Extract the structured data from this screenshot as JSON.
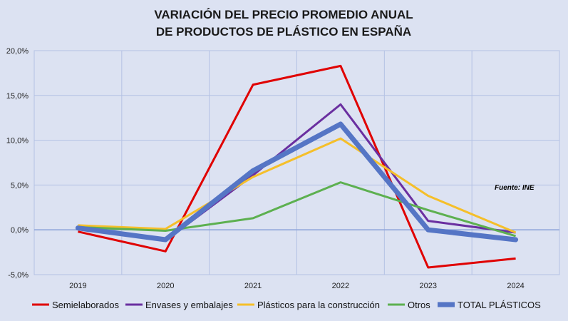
{
  "chart_data": {
    "type": "line",
    "title": [
      "VARIACIÓN DEL PRECIO PROMEDIO ANUAL",
      "DE PRODUCTOS DE PLÁSTICO EN ESPAÑA"
    ],
    "categories": [
      "2019",
      "2020",
      "2021",
      "2022",
      "2023",
      "2024"
    ],
    "ylim": [
      -5,
      20
    ],
    "yticks": [
      -5,
      0,
      5,
      10,
      15,
      20
    ],
    "ytick_labels": [
      "-5,0%",
      "0,0%",
      "5,0%",
      "10,0%",
      "15,0%",
      "20,0%"
    ],
    "grid": true,
    "legend_position": "bottom",
    "annotation": "Fuente: INE",
    "series": [
      {
        "name": "Semielaborados",
        "color": "#e00000",
        "values": [
          -0.2,
          -2.4,
          16.2,
          18.3,
          -4.2,
          -3.2
        ]
      },
      {
        "name": "Envases y embalajes",
        "color": "#6a2fa0",
        "values": [
          0.2,
          -1.2,
          6.1,
          14.0,
          1.0,
          -0.3
        ]
      },
      {
        "name": "Plásticos para la construcción",
        "color": "#f5bf2a",
        "values": [
          0.5,
          0.1,
          5.9,
          10.2,
          3.8,
          -0.3
        ]
      },
      {
        "name": "Otros",
        "color": "#5db050",
        "values": [
          0.3,
          -0.1,
          1.3,
          5.3,
          2.2,
          -0.7
        ]
      },
      {
        "name": "TOTAL PLÁSTICOS",
        "color": "#5575c5",
        "values": [
          0.2,
          -1.1,
          6.6,
          11.8,
          0.0,
          -1.1
        ]
      }
    ]
  }
}
